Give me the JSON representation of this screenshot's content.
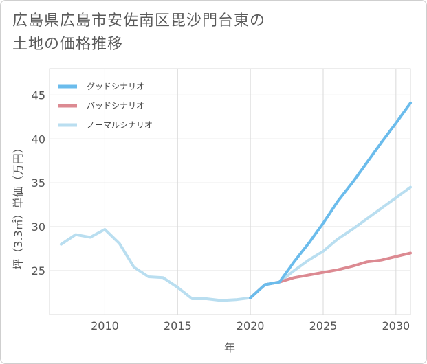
{
  "title_line1": "広島県広島市安佐南区毘沙門台東の",
  "title_line2": "土地の価格推移",
  "chart_data": {
    "type": "line",
    "xlabel": "年",
    "ylabel": "坪（3.3㎡）単価（万円）",
    "xlim": [
      2006.2,
      2031
    ],
    "ylim": [
      20.0,
      48.0
    ],
    "x_ticks": [
      2010,
      2015,
      2020,
      2025,
      2030
    ],
    "y_ticks": [
      25,
      30,
      35,
      40,
      45
    ],
    "grid": true,
    "legend_position": "top-left",
    "series": [
      {
        "name": "グッドシナリオ",
        "color": "#6bbcec",
        "x": [
          2020,
          2021,
          2022,
          2023,
          2024,
          2025,
          2026,
          2027,
          2028,
          2029,
          2030,
          2031
        ],
        "values": [
          21.9,
          23.4,
          23.7,
          26.0,
          28.1,
          30.4,
          32.9,
          35.0,
          37.3,
          39.6,
          41.8,
          44.1
        ]
      },
      {
        "name": "バッドシナリオ",
        "color": "#dc8a92",
        "x": [
          2020,
          2021,
          2022,
          2023,
          2024,
          2025,
          2026,
          2027,
          2028,
          2029,
          2030,
          2031
        ],
        "values": [
          21.9,
          23.4,
          23.7,
          24.2,
          24.5,
          24.8,
          25.1,
          25.5,
          26.0,
          26.2,
          26.6,
          27.0
        ]
      },
      {
        "name": "ノーマルシナリオ",
        "color": "#b9def0",
        "x": [
          2007,
          2008,
          2009,
          2010,
          2011,
          2012,
          2013,
          2014,
          2015,
          2016,
          2017,
          2018,
          2019,
          2020,
          2021,
          2022,
          2023,
          2024,
          2025,
          2026,
          2027,
          2028,
          2029,
          2030,
          2031
        ],
        "values": [
          28.0,
          29.1,
          28.8,
          29.7,
          28.1,
          25.4,
          24.3,
          24.2,
          23.1,
          21.8,
          21.8,
          21.6,
          21.7,
          21.9,
          23.4,
          23.7,
          25.0,
          26.2,
          27.2,
          28.6,
          29.7,
          30.9,
          32.1,
          33.3,
          34.5
        ]
      }
    ]
  }
}
